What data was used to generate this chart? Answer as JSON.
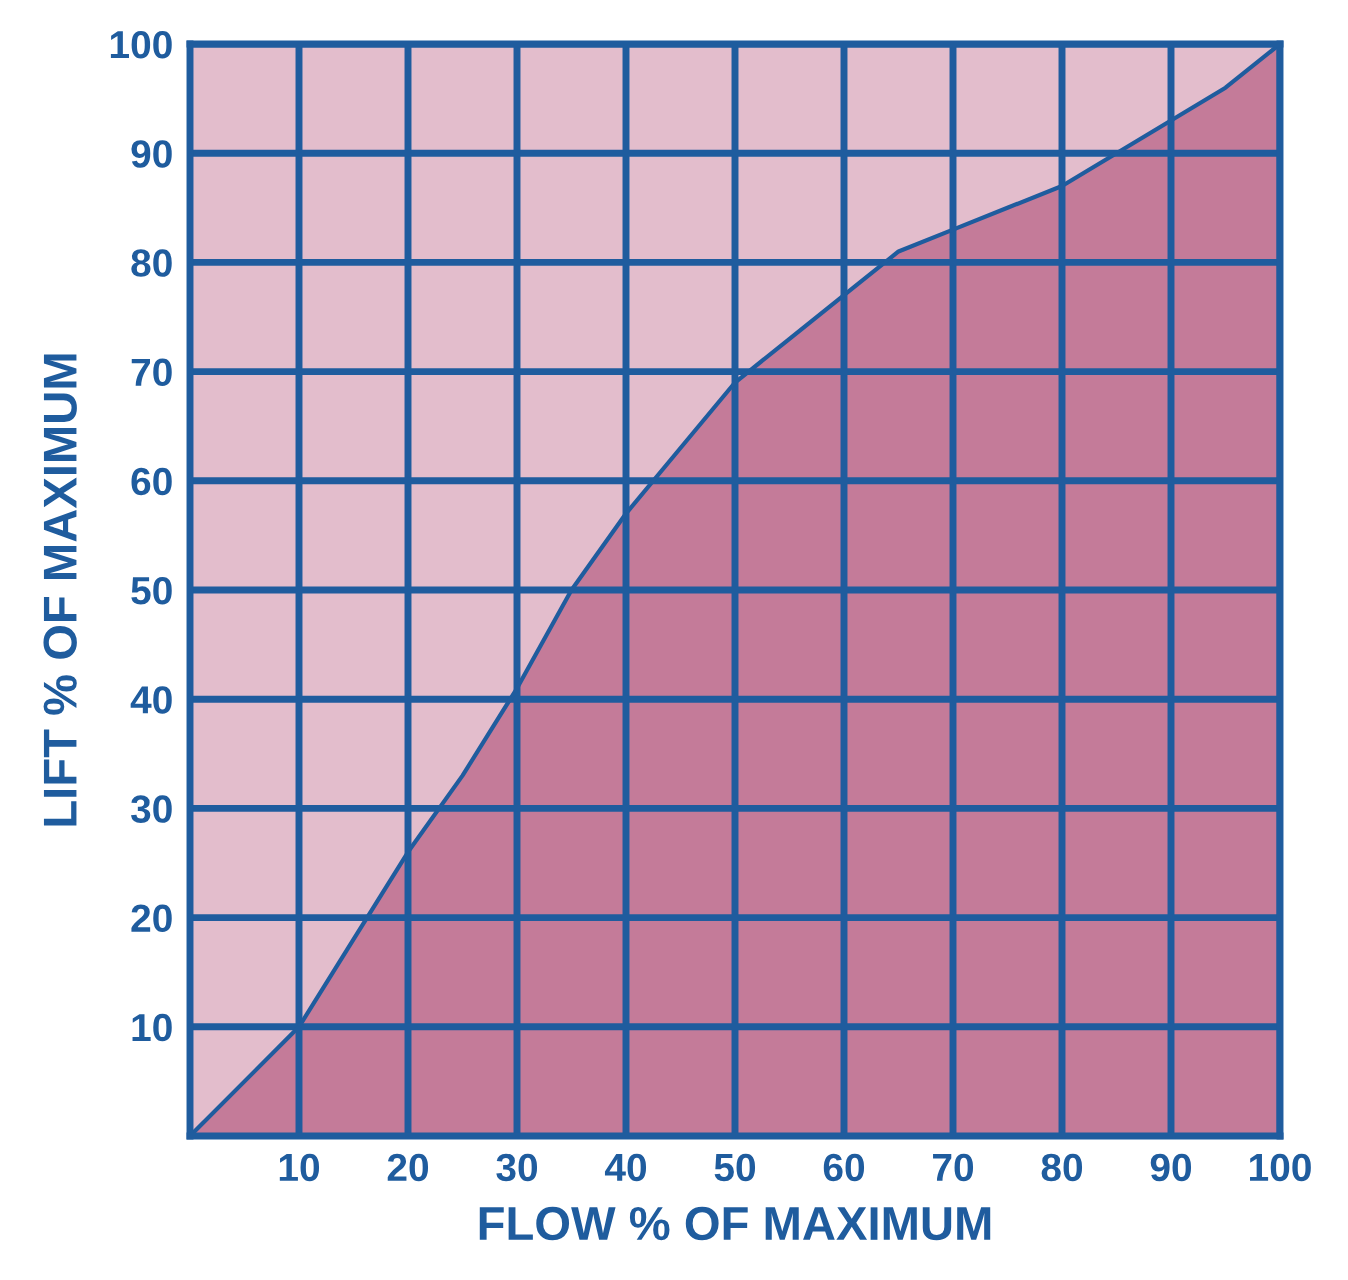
{
  "chart_data": {
    "type": "area",
    "xlabel": "FLOW % OF MAXIMUM",
    "ylabel": "LIFT % OF MAXIMUM",
    "x": [
      0,
      5,
      10,
      15,
      20,
      25,
      30,
      35,
      40,
      45,
      50,
      55,
      60,
      65,
      70,
      75,
      80,
      85,
      90,
      95,
      100
    ],
    "series": [
      {
        "color": "#c47b99",
        "values": [
          0,
          5,
          10,
          18,
          26,
          33,
          41,
          50,
          57,
          63,
          69,
          73,
          77,
          81,
          83,
          85,
          87,
          90,
          93,
          96,
          100
        ]
      }
    ],
    "xlim": [
      0,
      100
    ],
    "ylim": [
      0,
      100
    ],
    "xticks": [
      10,
      20,
      30,
      40,
      50,
      60,
      70,
      80,
      90,
      100
    ],
    "yticks": [
      10,
      20,
      30,
      40,
      50,
      60,
      70,
      80,
      90,
      100
    ],
    "grid": true
  }
}
